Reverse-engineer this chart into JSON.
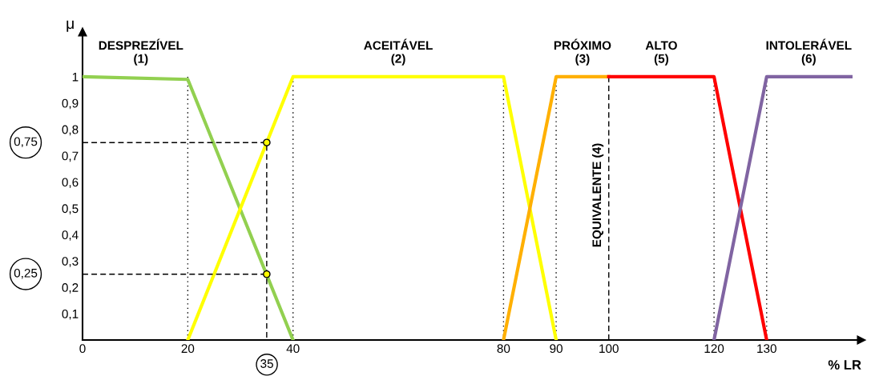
{
  "chart_data": {
    "type": "line",
    "xlabel": "% LR",
    "ylabel": "μ",
    "xlim": [
      0,
      148
    ],
    "ylim": [
      0,
      1.17
    ],
    "xticks": [
      0,
      20,
      40,
      80,
      90,
      100,
      120,
      130
    ],
    "yticks": [
      {
        "value": 0.1,
        "label": "0,1"
      },
      {
        "value": 0.2,
        "label": "0,2"
      },
      {
        "value": 0.3,
        "label": "0,3"
      },
      {
        "value": 0.4,
        "label": "0,4"
      },
      {
        "value": 0.5,
        "label": "0,5"
      },
      {
        "value": 0.6,
        "label": "0,6"
      },
      {
        "value": 0.7,
        "label": "0,7"
      },
      {
        "value": 0.8,
        "label": "0,8"
      },
      {
        "value": 0.9,
        "label": "0,9"
      },
      {
        "value": 1,
        "label": "1"
      }
    ],
    "grid": false,
    "legend": false,
    "series": [
      {
        "name": "DESPREZÍVEL\n(1)",
        "color": "#92d050",
        "x": [
          0,
          20,
          40
        ],
        "values": [
          1,
          0.99,
          0
        ]
      },
      {
        "name": "ACEITÁVEL\n(2)",
        "color": "#ffff00",
        "x": [
          20,
          40,
          80,
          90
        ],
        "values": [
          0,
          1,
          1,
          0
        ]
      },
      {
        "name": "PRÓXIMO\n(3)",
        "color": "#ffb000",
        "x": [
          80,
          90,
          100
        ],
        "values": [
          0,
          1,
          1
        ]
      },
      {
        "name": "ALTO\n(5)",
        "color": "#ff0000",
        "x": [
          100,
          120,
          130
        ],
        "values": [
          1,
          1,
          0
        ]
      },
      {
        "name": "INTOLERÁVEL\n(6)",
        "color": "#8064a2",
        "x": [
          120,
          130,
          146
        ],
        "values": [
          0,
          1,
          1
        ]
      },
      {
        "type": "line",
        "line_style": "dashed",
        "color": "#000000",
        "x": [
          0,
          35,
          35
        ],
        "values": [
          0.75,
          0.75,
          0
        ]
      },
      {
        "type": "line",
        "line_style": "dashed",
        "color": "#000000",
        "x": [
          0,
          35
        ],
        "values": [
          0.25,
          0.25
        ]
      },
      {
        "type": "scatter",
        "marker": "circle",
        "color": "#000000",
        "x": [
          35,
          35
        ],
        "values": [
          0.75,
          0.25
        ]
      }
    ],
    "ref_lines": [
      {
        "axis": "x",
        "value": 20,
        "line_style": "dotted"
      },
      {
        "axis": "x",
        "value": 40,
        "line_style": "dotted"
      },
      {
        "axis": "x",
        "value": 80,
        "line_style": "dotted"
      },
      {
        "axis": "x",
        "value": 90,
        "line_style": "dotted"
      },
      {
        "axis": "x",
        "value": 100,
        "line_style": "dashed",
        "label": "EQUIVALENTE (4)"
      },
      {
        "axis": "x",
        "value": 120,
        "line_style": "dotted"
      },
      {
        "axis": "x",
        "value": 130,
        "line_style": "dotted"
      }
    ],
    "annotations": [
      "0,75",
      "0,25",
      "35"
    ]
  }
}
